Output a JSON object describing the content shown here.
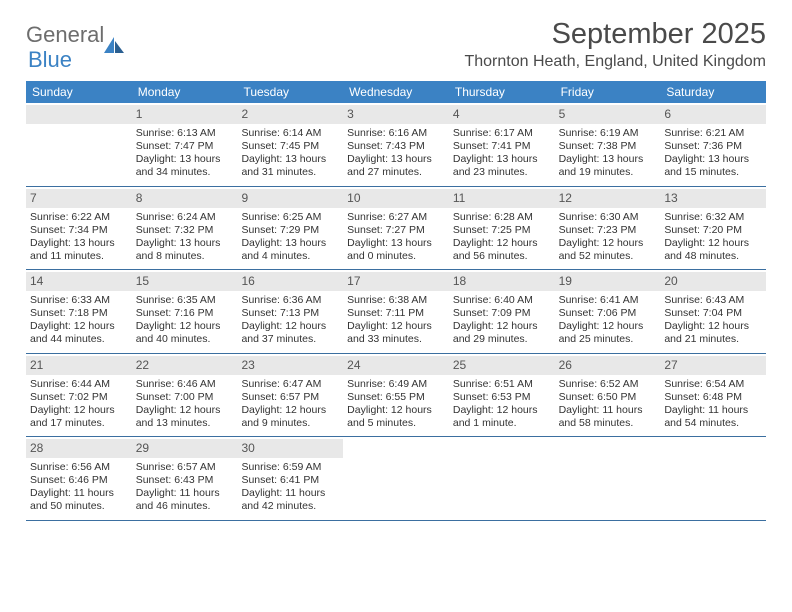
{
  "logo": {
    "text1": "General",
    "text2": "Blue"
  },
  "title": "September 2025",
  "location": "Thornton Heath, England, United Kingdom",
  "header_bg": "#3b82c4",
  "header_fg": "#ffffff",
  "daynum_bg": "#e8e8e8",
  "row_border": "#3b6fa0",
  "weekdays": [
    "Sunday",
    "Monday",
    "Tuesday",
    "Wednesday",
    "Thursday",
    "Friday",
    "Saturday"
  ],
  "weeks": [
    [
      null,
      {
        "n": "1",
        "sr": "Sunrise: 6:13 AM",
        "ss": "Sunset: 7:47 PM",
        "d1": "Daylight: 13 hours",
        "d2": "and 34 minutes."
      },
      {
        "n": "2",
        "sr": "Sunrise: 6:14 AM",
        "ss": "Sunset: 7:45 PM",
        "d1": "Daylight: 13 hours",
        "d2": "and 31 minutes."
      },
      {
        "n": "3",
        "sr": "Sunrise: 6:16 AM",
        "ss": "Sunset: 7:43 PM",
        "d1": "Daylight: 13 hours",
        "d2": "and 27 minutes."
      },
      {
        "n": "4",
        "sr": "Sunrise: 6:17 AM",
        "ss": "Sunset: 7:41 PM",
        "d1": "Daylight: 13 hours",
        "d2": "and 23 minutes."
      },
      {
        "n": "5",
        "sr": "Sunrise: 6:19 AM",
        "ss": "Sunset: 7:38 PM",
        "d1": "Daylight: 13 hours",
        "d2": "and 19 minutes."
      },
      {
        "n": "6",
        "sr": "Sunrise: 6:21 AM",
        "ss": "Sunset: 7:36 PM",
        "d1": "Daylight: 13 hours",
        "d2": "and 15 minutes."
      }
    ],
    [
      {
        "n": "7",
        "sr": "Sunrise: 6:22 AM",
        "ss": "Sunset: 7:34 PM",
        "d1": "Daylight: 13 hours",
        "d2": "and 11 minutes."
      },
      {
        "n": "8",
        "sr": "Sunrise: 6:24 AM",
        "ss": "Sunset: 7:32 PM",
        "d1": "Daylight: 13 hours",
        "d2": "and 8 minutes."
      },
      {
        "n": "9",
        "sr": "Sunrise: 6:25 AM",
        "ss": "Sunset: 7:29 PM",
        "d1": "Daylight: 13 hours",
        "d2": "and 4 minutes."
      },
      {
        "n": "10",
        "sr": "Sunrise: 6:27 AM",
        "ss": "Sunset: 7:27 PM",
        "d1": "Daylight: 13 hours",
        "d2": "and 0 minutes."
      },
      {
        "n": "11",
        "sr": "Sunrise: 6:28 AM",
        "ss": "Sunset: 7:25 PM",
        "d1": "Daylight: 12 hours",
        "d2": "and 56 minutes."
      },
      {
        "n": "12",
        "sr": "Sunrise: 6:30 AM",
        "ss": "Sunset: 7:23 PM",
        "d1": "Daylight: 12 hours",
        "d2": "and 52 minutes."
      },
      {
        "n": "13",
        "sr": "Sunrise: 6:32 AM",
        "ss": "Sunset: 7:20 PM",
        "d1": "Daylight: 12 hours",
        "d2": "and 48 minutes."
      }
    ],
    [
      {
        "n": "14",
        "sr": "Sunrise: 6:33 AM",
        "ss": "Sunset: 7:18 PM",
        "d1": "Daylight: 12 hours",
        "d2": "and 44 minutes."
      },
      {
        "n": "15",
        "sr": "Sunrise: 6:35 AM",
        "ss": "Sunset: 7:16 PM",
        "d1": "Daylight: 12 hours",
        "d2": "and 40 minutes."
      },
      {
        "n": "16",
        "sr": "Sunrise: 6:36 AM",
        "ss": "Sunset: 7:13 PM",
        "d1": "Daylight: 12 hours",
        "d2": "and 37 minutes."
      },
      {
        "n": "17",
        "sr": "Sunrise: 6:38 AM",
        "ss": "Sunset: 7:11 PM",
        "d1": "Daylight: 12 hours",
        "d2": "and 33 minutes."
      },
      {
        "n": "18",
        "sr": "Sunrise: 6:40 AM",
        "ss": "Sunset: 7:09 PM",
        "d1": "Daylight: 12 hours",
        "d2": "and 29 minutes."
      },
      {
        "n": "19",
        "sr": "Sunrise: 6:41 AM",
        "ss": "Sunset: 7:06 PM",
        "d1": "Daylight: 12 hours",
        "d2": "and 25 minutes."
      },
      {
        "n": "20",
        "sr": "Sunrise: 6:43 AM",
        "ss": "Sunset: 7:04 PM",
        "d1": "Daylight: 12 hours",
        "d2": "and 21 minutes."
      }
    ],
    [
      {
        "n": "21",
        "sr": "Sunrise: 6:44 AM",
        "ss": "Sunset: 7:02 PM",
        "d1": "Daylight: 12 hours",
        "d2": "and 17 minutes."
      },
      {
        "n": "22",
        "sr": "Sunrise: 6:46 AM",
        "ss": "Sunset: 7:00 PM",
        "d1": "Daylight: 12 hours",
        "d2": "and 13 minutes."
      },
      {
        "n": "23",
        "sr": "Sunrise: 6:47 AM",
        "ss": "Sunset: 6:57 PM",
        "d1": "Daylight: 12 hours",
        "d2": "and 9 minutes."
      },
      {
        "n": "24",
        "sr": "Sunrise: 6:49 AM",
        "ss": "Sunset: 6:55 PM",
        "d1": "Daylight: 12 hours",
        "d2": "and 5 minutes."
      },
      {
        "n": "25",
        "sr": "Sunrise: 6:51 AM",
        "ss": "Sunset: 6:53 PM",
        "d1": "Daylight: 12 hours",
        "d2": "and 1 minute."
      },
      {
        "n": "26",
        "sr": "Sunrise: 6:52 AM",
        "ss": "Sunset: 6:50 PM",
        "d1": "Daylight: 11 hours",
        "d2": "and 58 minutes."
      },
      {
        "n": "27",
        "sr": "Sunrise: 6:54 AM",
        "ss": "Sunset: 6:48 PM",
        "d1": "Daylight: 11 hours",
        "d2": "and 54 minutes."
      }
    ],
    [
      {
        "n": "28",
        "sr": "Sunrise: 6:56 AM",
        "ss": "Sunset: 6:46 PM",
        "d1": "Daylight: 11 hours",
        "d2": "and 50 minutes."
      },
      {
        "n": "29",
        "sr": "Sunrise: 6:57 AM",
        "ss": "Sunset: 6:43 PM",
        "d1": "Daylight: 11 hours",
        "d2": "and 46 minutes."
      },
      {
        "n": "30",
        "sr": "Sunrise: 6:59 AM",
        "ss": "Sunset: 6:41 PM",
        "d1": "Daylight: 11 hours",
        "d2": "and 42 minutes."
      },
      null,
      null,
      null,
      null
    ]
  ]
}
